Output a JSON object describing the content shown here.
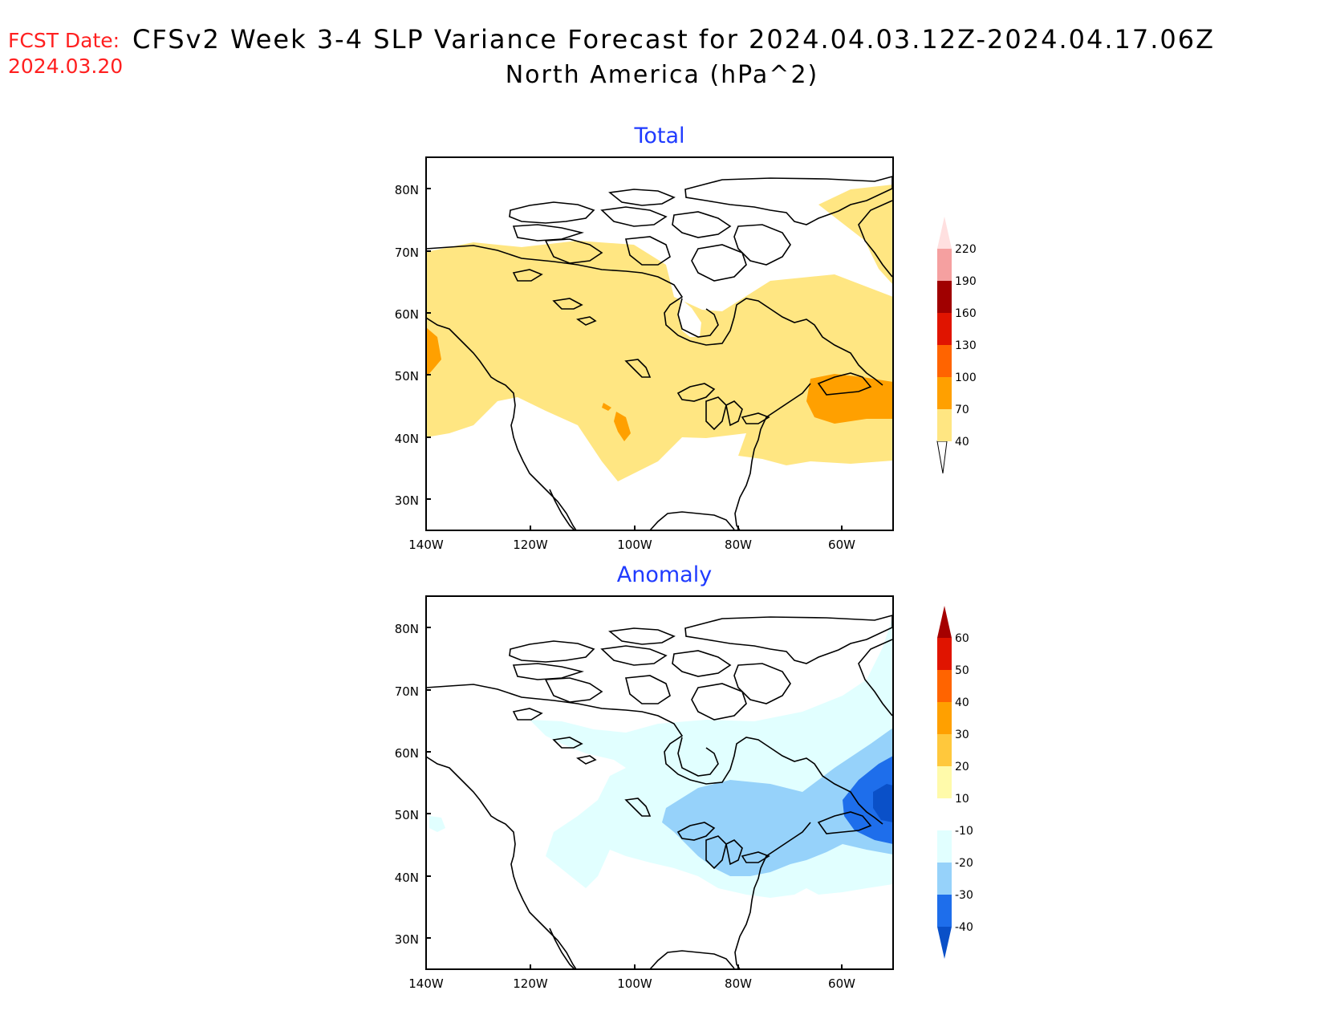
{
  "header": {
    "fcst_label": "FCST Date:",
    "fcst_date": "2024.03.20",
    "title": "CFSv2 Week 3-4 SLP Variance Forecast for 2024.04.03.12Z-2024.04.17.06Z",
    "subtitle": "North America (hPa^2)"
  },
  "map": {
    "lat_ticks": [
      "80N",
      "70N",
      "60N",
      "50N",
      "40N",
      "30N"
    ],
    "lon_ticks": [
      "140W",
      "120W",
      "100W",
      "80W",
      "60W"
    ]
  },
  "panels": [
    {
      "title": "Total",
      "title_color": "#1f3bff",
      "colorbar": {
        "labels": [
          "40",
          "70",
          "100",
          "130",
          "160",
          "190",
          "220"
        ],
        "colors": [
          "#ffe682",
          "#ffa000",
          "#ff6400",
          "#e01400",
          "#a00000",
          "#f5a0a0",
          "#ffe0e0"
        ]
      },
      "shaded_fields": [
        "40-70",
        "70-100"
      ]
    },
    {
      "title": "Anomaly",
      "title_color": "#1f3bff",
      "colorbar": {
        "labels": [
          "60",
          "50",
          "40",
          "30",
          "20",
          "10",
          "-10",
          "-20",
          "-30",
          "-40"
        ],
        "colors": [
          "#a50000",
          "#e01400",
          "#ff6400",
          "#ffa000",
          "#ffc83c",
          "#fffaaa",
          "#ffffff",
          "#e1ffff",
          "#96d2fa",
          "#1e6eeb",
          "#0a50c8"
        ]
      },
      "shaded_fields": [
        "-10 to -20",
        "-20 to -30",
        "-30 to -40"
      ]
    }
  ],
  "colors": {
    "fcst": "#ff2020",
    "panel_title": "#1f3bff"
  }
}
